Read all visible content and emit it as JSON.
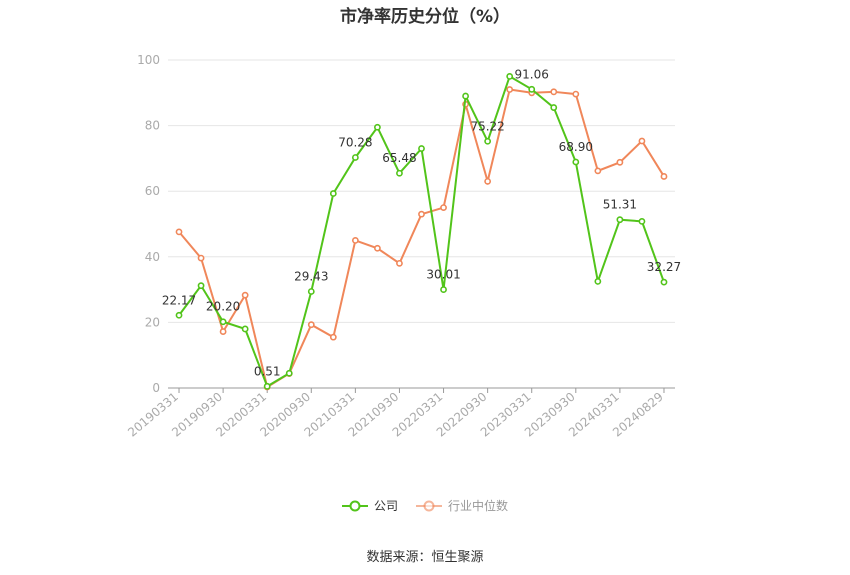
{
  "title": "市净率历史分位（%）",
  "source": "数据来源：恒生聚源",
  "legend": {
    "company": "公司",
    "industry": "行业中位数"
  },
  "colors": {
    "company": "#52c41a",
    "industry": "#f0875a",
    "grid": "#e6e6e6",
    "axis": "#999999",
    "label": "#333333",
    "tick": "#aaaaaa"
  },
  "chart_data": {
    "type": "line",
    "title": "市净率历史分位（%）",
    "ylim": [
      0,
      100
    ],
    "yticks": [
      0,
      20,
      40,
      60,
      80,
      100
    ],
    "grid": true,
    "legend_position": "bottom",
    "x": [
      "20190331",
      "20190630",
      "20190930",
      "20191231",
      "20200331",
      "20200630",
      "20200930",
      "20201231",
      "20210331",
      "20210630",
      "20210930",
      "20211231",
      "20220331",
      "20220630",
      "20220930",
      "20221231",
      "20230331",
      "20230630",
      "20230930",
      "20231231",
      "20240331",
      "20240630",
      "20240829"
    ],
    "xtick_labels": [
      "20190331",
      "20190930",
      "20200331",
      "20200930",
      "20210331",
      "20210930",
      "20220331",
      "20220930",
      "20230331",
      "20230930",
      "20240331",
      "20240829"
    ],
    "series": [
      {
        "name": "公司",
        "values": [
          22.17,
          31.2,
          20.2,
          18.0,
          0.51,
          4.5,
          29.43,
          59.3,
          70.28,
          79.5,
          65.48,
          73.0,
          30.01,
          89.0,
          75.22,
          95.0,
          91.06,
          85.5,
          68.9,
          32.5,
          51.31,
          50.8,
          32.27
        ],
        "labels": {
          "0": "22.17",
          "2": "20.20",
          "4": "0.51",
          "6": "29.43",
          "8": "70.28",
          "10": "65.48",
          "12": "30.01",
          "14": "75.22",
          "16": "91.06",
          "18": "68.90",
          "20": "51.31",
          "22": "32.27"
        }
      },
      {
        "name": "行业中位数",
        "values": [
          47.6,
          39.6,
          17.2,
          28.3,
          0.3,
          4.4,
          19.3,
          15.5,
          45.0,
          42.6,
          38.0,
          53.0,
          55.0,
          86.5,
          63.0,
          91.0,
          90.0,
          90.3,
          89.6,
          66.2,
          68.8,
          75.3,
          64.5
        ]
      }
    ]
  }
}
